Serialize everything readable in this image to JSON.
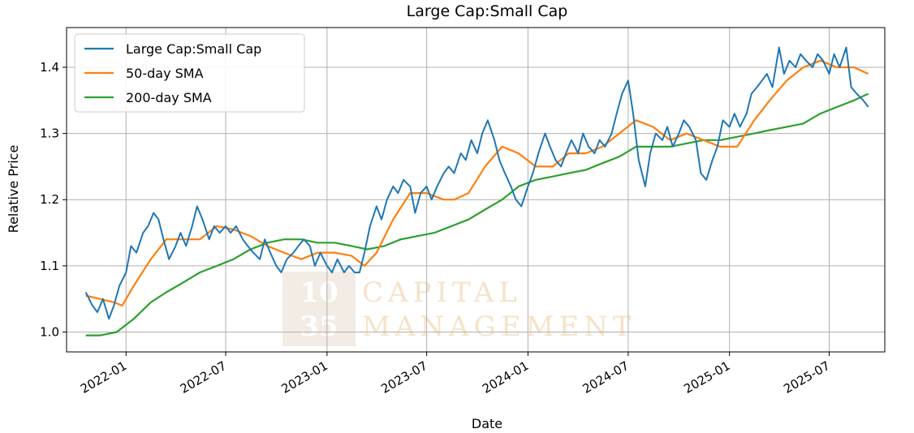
{
  "chart_data": {
    "type": "line",
    "title": "Large Cap:Small Cap",
    "xlabel": "Date",
    "ylabel": "Relative Price",
    "xlim": [
      "2021-09-15",
      "2025-10-10"
    ],
    "ylim": [
      0.97,
      1.46
    ],
    "grid": true,
    "legend_position": "top-left",
    "x_ticks": [
      "2022-01",
      "2022-07",
      "2023-01",
      "2023-07",
      "2024-01",
      "2024-07",
      "2025-01",
      "2025-07"
    ],
    "y_ticks": [
      "1.0",
      "1.1",
      "1.2",
      "1.3",
      "1.4"
    ],
    "watermark": {
      "numbers": [
        "10",
        "35"
      ],
      "text": [
        "CAPITAL",
        "MANAGEMENT"
      ]
    },
    "series": [
      {
        "name": "Large Cap:Small Cap",
        "color": "#1f77b4",
        "points": [
          [
            "2021-10-20",
            1.06
          ],
          [
            "2021-11-01",
            1.04
          ],
          [
            "2021-11-10",
            1.03
          ],
          [
            "2021-11-20",
            1.05
          ],
          [
            "2021-12-01",
            1.02
          ],
          [
            "2021-12-10",
            1.04
          ],
          [
            "2021-12-20",
            1.07
          ],
          [
            "2022-01-01",
            1.09
          ],
          [
            "2022-01-10",
            1.13
          ],
          [
            "2022-01-20",
            1.12
          ],
          [
            "2022-02-01",
            1.15
          ],
          [
            "2022-02-10",
            1.16
          ],
          [
            "2022-02-20",
            1.18
          ],
          [
            "2022-03-01",
            1.17
          ],
          [
            "2022-03-10",
            1.14
          ],
          [
            "2022-03-20",
            1.11
          ],
          [
            "2022-04-01",
            1.13
          ],
          [
            "2022-04-10",
            1.15
          ],
          [
            "2022-04-20",
            1.13
          ],
          [
            "2022-05-01",
            1.16
          ],
          [
            "2022-05-10",
            1.19
          ],
          [
            "2022-05-20",
            1.17
          ],
          [
            "2022-06-01",
            1.14
          ],
          [
            "2022-06-10",
            1.16
          ],
          [
            "2022-06-20",
            1.15
          ],
          [
            "2022-07-01",
            1.16
          ],
          [
            "2022-07-10",
            1.15
          ],
          [
            "2022-07-20",
            1.16
          ],
          [
            "2022-08-01",
            1.14
          ],
          [
            "2022-08-10",
            1.13
          ],
          [
            "2022-08-20",
            1.12
          ],
          [
            "2022-09-01",
            1.11
          ],
          [
            "2022-09-10",
            1.14
          ],
          [
            "2022-09-20",
            1.12
          ],
          [
            "2022-10-01",
            1.1
          ],
          [
            "2022-10-10",
            1.09
          ],
          [
            "2022-10-20",
            1.11
          ],
          [
            "2022-11-01",
            1.12
          ],
          [
            "2022-11-10",
            1.13
          ],
          [
            "2022-11-20",
            1.14
          ],
          [
            "2022-12-01",
            1.13
          ],
          [
            "2022-12-10",
            1.1
          ],
          [
            "2022-12-20",
            1.12
          ],
          [
            "2023-01-01",
            1.1
          ],
          [
            "2023-01-10",
            1.09
          ],
          [
            "2023-01-20",
            1.11
          ],
          [
            "2023-02-01",
            1.09
          ],
          [
            "2023-02-10",
            1.1
          ],
          [
            "2023-02-20",
            1.09
          ],
          [
            "2023-03-01",
            1.09
          ],
          [
            "2023-03-10",
            1.12
          ],
          [
            "2023-03-20",
            1.16
          ],
          [
            "2023-04-01",
            1.19
          ],
          [
            "2023-04-10",
            1.17
          ],
          [
            "2023-04-20",
            1.2
          ],
          [
            "2023-05-01",
            1.22
          ],
          [
            "2023-05-10",
            1.21
          ],
          [
            "2023-05-20",
            1.23
          ],
          [
            "2023-06-01",
            1.22
          ],
          [
            "2023-06-10",
            1.18
          ],
          [
            "2023-06-20",
            1.21
          ],
          [
            "2023-07-01",
            1.22
          ],
          [
            "2023-07-10",
            1.2
          ],
          [
            "2023-07-20",
            1.22
          ],
          [
            "2023-08-01",
            1.24
          ],
          [
            "2023-08-10",
            1.25
          ],
          [
            "2023-08-20",
            1.24
          ],
          [
            "2023-09-01",
            1.27
          ],
          [
            "2023-09-10",
            1.26
          ],
          [
            "2023-09-20",
            1.29
          ],
          [
            "2023-10-01",
            1.27
          ],
          [
            "2023-10-10",
            1.3
          ],
          [
            "2023-10-20",
            1.32
          ],
          [
            "2023-11-01",
            1.29
          ],
          [
            "2023-11-10",
            1.26
          ],
          [
            "2023-11-20",
            1.24
          ],
          [
            "2023-12-01",
            1.22
          ],
          [
            "2023-12-10",
            1.2
          ],
          [
            "2023-12-20",
            1.19
          ],
          [
            "2024-01-01",
            1.22
          ],
          [
            "2024-01-10",
            1.24
          ],
          [
            "2024-01-20",
            1.27
          ],
          [
            "2024-02-01",
            1.3
          ],
          [
            "2024-02-10",
            1.28
          ],
          [
            "2024-02-20",
            1.26
          ],
          [
            "2024-03-01",
            1.25
          ],
          [
            "2024-03-10",
            1.27
          ],
          [
            "2024-03-20",
            1.29
          ],
          [
            "2024-04-01",
            1.27
          ],
          [
            "2024-04-10",
            1.3
          ],
          [
            "2024-04-20",
            1.28
          ],
          [
            "2024-05-01",
            1.27
          ],
          [
            "2024-05-10",
            1.29
          ],
          [
            "2024-05-20",
            1.28
          ],
          [
            "2024-06-01",
            1.3
          ],
          [
            "2024-06-10",
            1.33
          ],
          [
            "2024-06-20",
            1.36
          ],
          [
            "2024-07-01",
            1.38
          ],
          [
            "2024-07-10",
            1.33
          ],
          [
            "2024-07-20",
            1.26
          ],
          [
            "2024-08-01",
            1.22
          ],
          [
            "2024-08-10",
            1.27
          ],
          [
            "2024-08-20",
            1.3
          ],
          [
            "2024-09-01",
            1.29
          ],
          [
            "2024-09-10",
            1.31
          ],
          [
            "2024-09-20",
            1.28
          ],
          [
            "2024-10-01",
            1.3
          ],
          [
            "2024-10-10",
            1.32
          ],
          [
            "2024-10-20",
            1.31
          ],
          [
            "2024-11-01",
            1.29
          ],
          [
            "2024-11-10",
            1.24
          ],
          [
            "2024-11-20",
            1.23
          ],
          [
            "2024-12-01",
            1.26
          ],
          [
            "2024-12-10",
            1.28
          ],
          [
            "2024-12-20",
            1.32
          ],
          [
            "2025-01-01",
            1.31
          ],
          [
            "2025-01-10",
            1.33
          ],
          [
            "2025-01-20",
            1.31
          ],
          [
            "2025-02-01",
            1.33
          ],
          [
            "2025-02-10",
            1.36
          ],
          [
            "2025-02-20",
            1.37
          ],
          [
            "2025-03-01",
            1.38
          ],
          [
            "2025-03-10",
            1.39
          ],
          [
            "2025-03-20",
            1.37
          ],
          [
            "2025-04-01",
            1.43
          ],
          [
            "2025-04-10",
            1.39
          ],
          [
            "2025-04-20",
            1.41
          ],
          [
            "2025-05-01",
            1.4
          ],
          [
            "2025-05-10",
            1.42
          ],
          [
            "2025-05-20",
            1.41
          ],
          [
            "2025-06-01",
            1.4
          ],
          [
            "2025-06-10",
            1.42
          ],
          [
            "2025-06-20",
            1.41
          ],
          [
            "2025-07-01",
            1.39
          ],
          [
            "2025-07-10",
            1.42
          ],
          [
            "2025-07-20",
            1.4
          ],
          [
            "2025-08-01",
            1.43
          ],
          [
            "2025-08-10",
            1.37
          ],
          [
            "2025-08-20",
            1.36
          ],
          [
            "2025-09-01",
            1.35
          ],
          [
            "2025-09-10",
            1.34
          ]
        ]
      },
      {
        "name": "50-day SMA",
        "color": "#ff7f0e",
        "points": [
          [
            "2021-10-20",
            1.055
          ],
          [
            "2021-11-15",
            1.05
          ],
          [
            "2021-12-10",
            1.045
          ],
          [
            "2021-12-25",
            1.04
          ],
          [
            "2022-01-15",
            1.07
          ],
          [
            "2022-02-15",
            1.11
          ],
          [
            "2022-03-15",
            1.14
          ],
          [
            "2022-04-15",
            1.14
          ],
          [
            "2022-05-15",
            1.14
          ],
          [
            "2022-06-15",
            1.16
          ],
          [
            "2022-07-15",
            1.155
          ],
          [
            "2022-08-15",
            1.145
          ],
          [
            "2022-09-15",
            1.13
          ],
          [
            "2022-10-15",
            1.12
          ],
          [
            "2022-11-15",
            1.11
          ],
          [
            "2022-12-15",
            1.12
          ],
          [
            "2023-01-15",
            1.12
          ],
          [
            "2023-02-15",
            1.115
          ],
          [
            "2023-03-10",
            1.1
          ],
          [
            "2023-04-01",
            1.12
          ],
          [
            "2023-05-01",
            1.17
          ],
          [
            "2023-06-01",
            1.21
          ],
          [
            "2023-07-01",
            1.21
          ],
          [
            "2023-08-01",
            1.2
          ],
          [
            "2023-08-20",
            1.2
          ],
          [
            "2023-09-15",
            1.21
          ],
          [
            "2023-10-15",
            1.25
          ],
          [
            "2023-11-15",
            1.28
          ],
          [
            "2023-12-15",
            1.27
          ],
          [
            "2024-01-15",
            1.25
          ],
          [
            "2024-02-15",
            1.25
          ],
          [
            "2024-03-15",
            1.27
          ],
          [
            "2024-04-15",
            1.27
          ],
          [
            "2024-05-15",
            1.28
          ],
          [
            "2024-06-15",
            1.3
          ],
          [
            "2024-07-15",
            1.32
          ],
          [
            "2024-08-15",
            1.31
          ],
          [
            "2024-09-15",
            1.29
          ],
          [
            "2024-10-15",
            1.3
          ],
          [
            "2024-11-15",
            1.29
          ],
          [
            "2024-12-15",
            1.28
          ],
          [
            "2025-01-15",
            1.28
          ],
          [
            "2025-02-15",
            1.32
          ],
          [
            "2025-03-15",
            1.35
          ],
          [
            "2025-04-15",
            1.38
          ],
          [
            "2025-05-15",
            1.4
          ],
          [
            "2025-06-15",
            1.41
          ],
          [
            "2025-07-15",
            1.4
          ],
          [
            "2025-08-15",
            1.4
          ],
          [
            "2025-09-10",
            1.39
          ]
        ]
      },
      {
        "name": "200-day SMA",
        "color": "#2ca02c",
        "points": [
          [
            "2021-10-20",
            0.995
          ],
          [
            "2021-11-15",
            0.995
          ],
          [
            "2021-12-15",
            1.0
          ],
          [
            "2022-01-15",
            1.02
          ],
          [
            "2022-02-15",
            1.045
          ],
          [
            "2022-03-15",
            1.06
          ],
          [
            "2022-04-15",
            1.075
          ],
          [
            "2022-05-15",
            1.09
          ],
          [
            "2022-06-15",
            1.1
          ],
          [
            "2022-07-15",
            1.11
          ],
          [
            "2022-08-15",
            1.125
          ],
          [
            "2022-09-15",
            1.135
          ],
          [
            "2022-10-15",
            1.14
          ],
          [
            "2022-11-15",
            1.14
          ],
          [
            "2022-12-15",
            1.135
          ],
          [
            "2023-01-15",
            1.135
          ],
          [
            "2023-02-15",
            1.13
          ],
          [
            "2023-03-15",
            1.125
          ],
          [
            "2023-04-15",
            1.13
          ],
          [
            "2023-05-15",
            1.14
          ],
          [
            "2023-06-15",
            1.145
          ],
          [
            "2023-07-15",
            1.15
          ],
          [
            "2023-08-15",
            1.16
          ],
          [
            "2023-09-15",
            1.17
          ],
          [
            "2023-10-15",
            1.185
          ],
          [
            "2023-11-15",
            1.2
          ],
          [
            "2023-12-15",
            1.22
          ],
          [
            "2024-01-15",
            1.23
          ],
          [
            "2024-02-15",
            1.235
          ],
          [
            "2024-03-15",
            1.24
          ],
          [
            "2024-04-15",
            1.245
          ],
          [
            "2024-05-15",
            1.255
          ],
          [
            "2024-06-15",
            1.265
          ],
          [
            "2024-07-15",
            1.28
          ],
          [
            "2024-08-15",
            1.28
          ],
          [
            "2024-09-15",
            1.28
          ],
          [
            "2024-10-15",
            1.285
          ],
          [
            "2024-11-15",
            1.29
          ],
          [
            "2024-12-15",
            1.29
          ],
          [
            "2025-01-15",
            1.295
          ],
          [
            "2025-02-15",
            1.3
          ],
          [
            "2025-03-15",
            1.305
          ],
          [
            "2025-04-15",
            1.31
          ],
          [
            "2025-05-15",
            1.315
          ],
          [
            "2025-06-15",
            1.33
          ],
          [
            "2025-07-15",
            1.34
          ],
          [
            "2025-08-15",
            1.35
          ],
          [
            "2025-09-10",
            1.36
          ]
        ]
      }
    ]
  }
}
